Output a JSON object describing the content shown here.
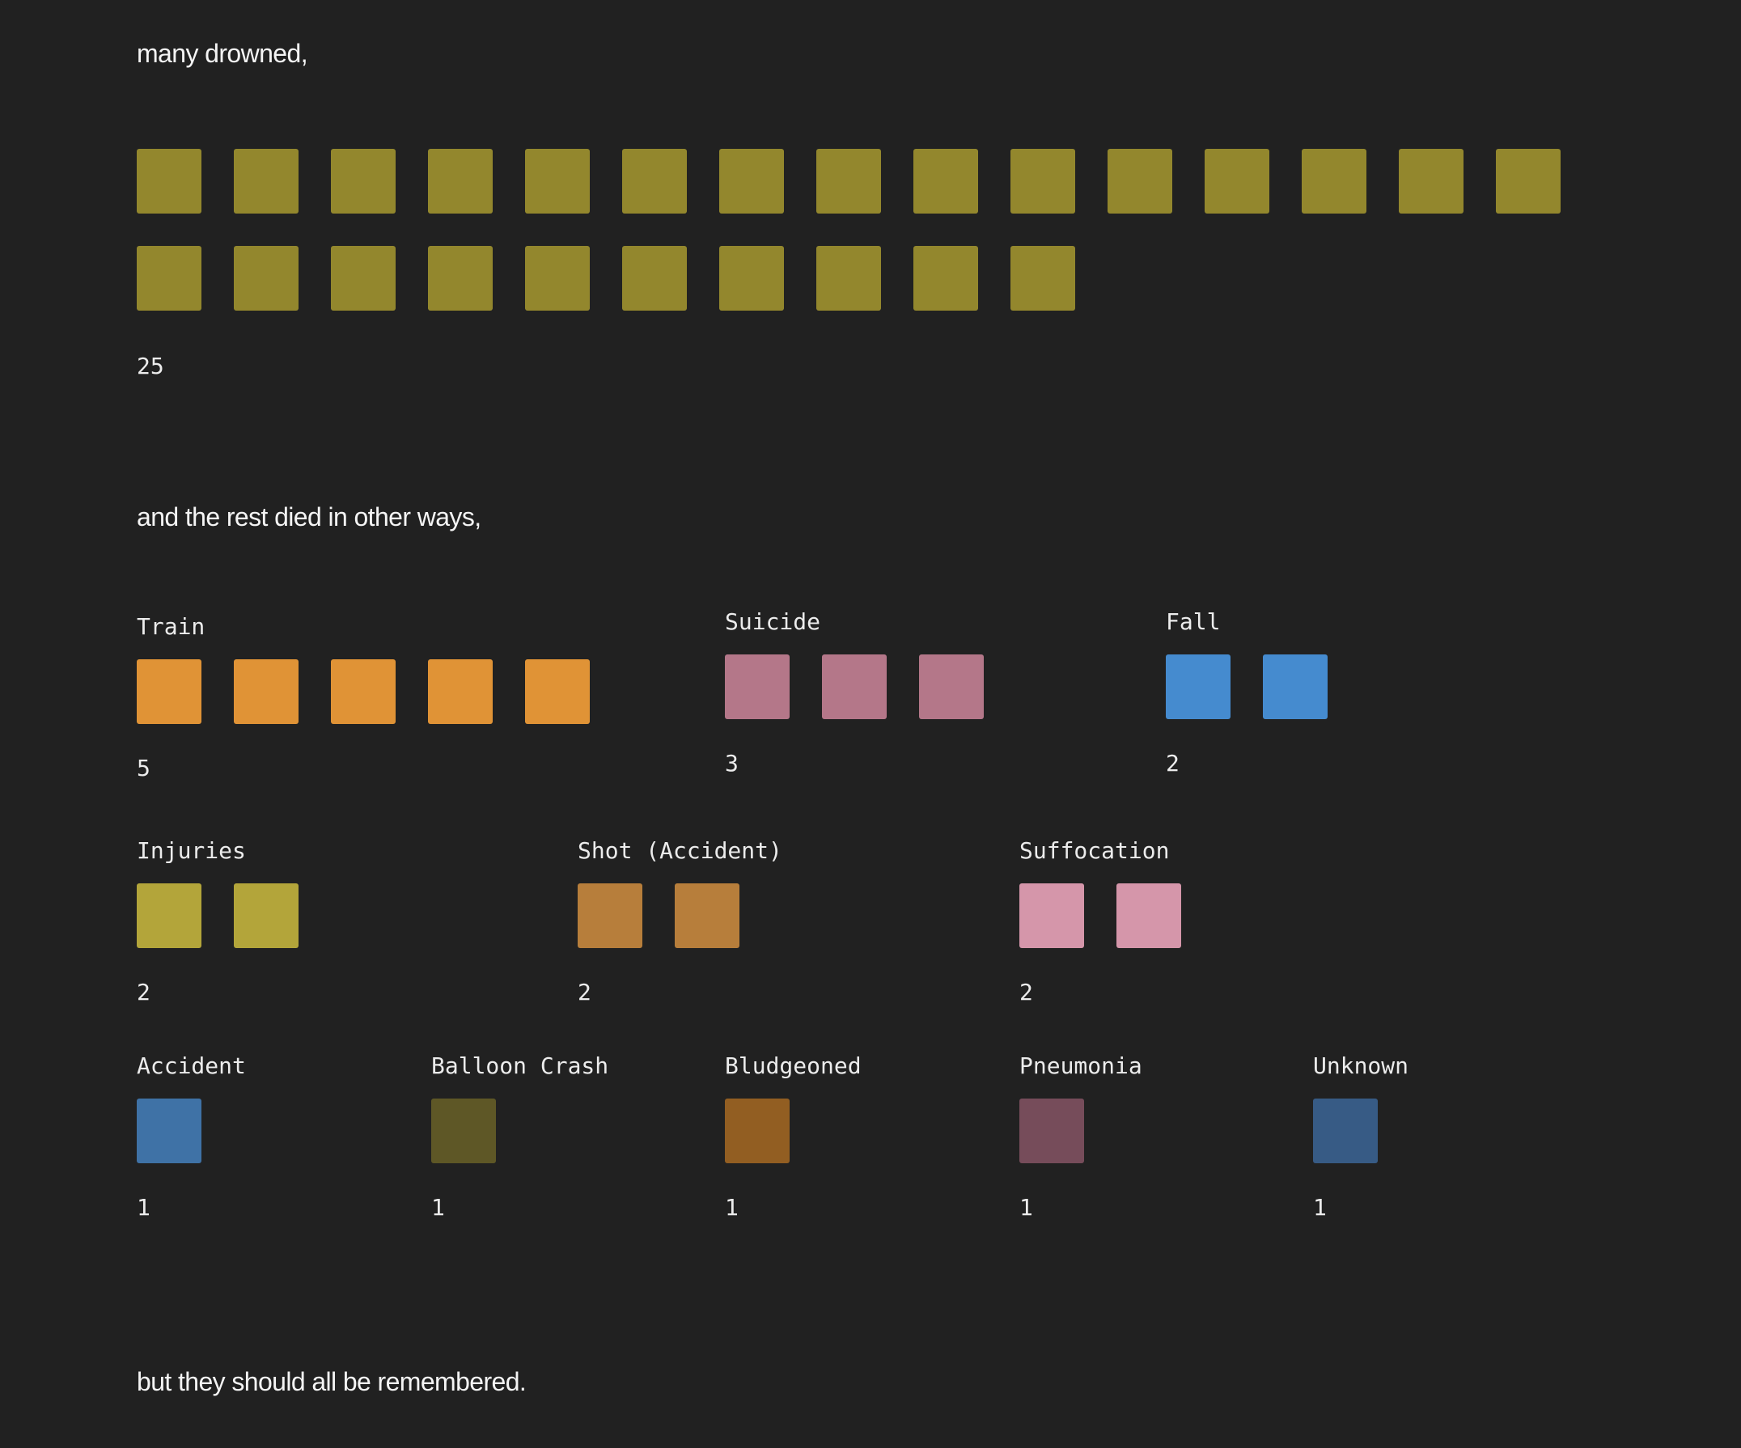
{
  "narrative": {
    "drowned_intro": "many drowned,",
    "rest_intro": "and the rest died in other ways,",
    "closing": "but they should all be remembered."
  },
  "chart_data": [
    {
      "type": "waffle",
      "categories": [
        "Drowned"
      ],
      "values": [
        25
      ],
      "count_label": "25",
      "color": "#93872d"
    },
    {
      "type": "waffle",
      "series": [
        {
          "name": "Train",
          "value": 5,
          "count_label": "5",
          "color": "#e09336"
        },
        {
          "name": "Suicide",
          "value": 3,
          "count_label": "3",
          "color": "#b47789"
        },
        {
          "name": "Fall",
          "value": 2,
          "count_label": "2",
          "color": "#458bcf"
        },
        {
          "name": "Injuries",
          "value": 2,
          "count_label": "2",
          "color": "#b3a53a"
        },
        {
          "name": "Shot (Accident)",
          "value": 2,
          "count_label": "2",
          "color": "#b77e3b"
        },
        {
          "name": "Suffocation",
          "value": 2,
          "count_label": "2",
          "color": "#d596aa"
        },
        {
          "name": "Accident",
          "value": 1,
          "count_label": "1",
          "color": "#3f72a6"
        },
        {
          "name": "Balloon Crash",
          "value": 1,
          "count_label": "1",
          "color": "#5e5726"
        },
        {
          "name": "Bludgeoned",
          "value": 1,
          "count_label": "1",
          "color": "#925e22"
        },
        {
          "name": "Pneumonia",
          "value": 1,
          "count_label": "1",
          "color": "#764c5a"
        },
        {
          "name": "Unknown",
          "value": 1,
          "count_label": "1",
          "color": "#375b85"
        }
      ]
    }
  ]
}
